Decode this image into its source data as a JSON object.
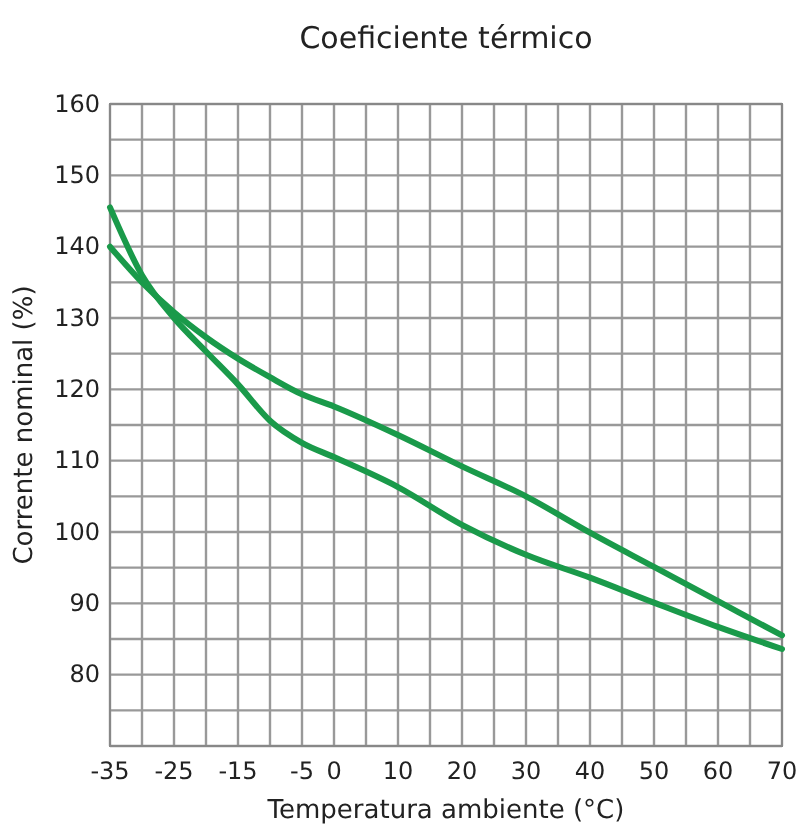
{
  "chart_data": {
    "type": "line",
    "title": "Coeficiente térmico",
    "xlabel": "Temperatura ambiente (°C)",
    "ylabel": "Corrente nominal (%)",
    "x": [
      -35,
      -30,
      -25,
      -20,
      -15,
      -10,
      -5,
      0,
      10,
      20,
      30,
      40,
      50,
      60,
      70
    ],
    "series": [
      {
        "color": "#1a9a4a",
        "values": [
          140,
          135,
          130.8,
          127.3,
          124.3,
          121.7,
          119.3,
          117.6,
          113.6,
          109.2,
          105,
          99.9,
          95.1,
          90.3,
          85.5
        ]
      },
      {
        "color": "#1a9a4a",
        "values": [
          145.5,
          136,
          130,
          125.3,
          120.7,
          115.6,
          112.5,
          110.5,
          106.3,
          101,
          96.8,
          93.6,
          90.1,
          86.7,
          83.6
        ]
      }
    ],
    "xlim": [
      -35,
      70
    ],
    "ylim": [
      70,
      160
    ],
    "xticks": [
      -35,
      {
        "value": -30,
        "label": null
      },
      -25,
      {
        "value": -20,
        "label": null
      },
      -15,
      {
        "value": -10,
        "label": null
      },
      -5,
      0,
      {
        "value": 5,
        "label": null
      },
      10,
      {
        "value": 15,
        "label": null
      },
      20,
      {
        "value": 25,
        "label": null
      },
      30,
      {
        "value": 35,
        "label": null
      },
      40,
      {
        "value": 45,
        "label": null
      },
      50,
      {
        "value": 55,
        "label": null
      },
      60,
      {
        "value": 65,
        "label": null
      },
      70
    ],
    "yticks": [
      {
        "value": 70,
        "label": null
      },
      {
        "value": 75,
        "label": null
      },
      80,
      {
        "value": 85,
        "label": null
      },
      90,
      {
        "value": 95,
        "label": null
      },
      100,
      {
        "value": 105,
        "label": null
      },
      110,
      {
        "value": 115,
        "label": null
      },
      120,
      {
        "value": 125,
        "label": null
      },
      130,
      {
        "value": 135,
        "label": null
      },
      140,
      {
        "value": 145,
        "label": null
      },
      150,
      {
        "value": 155,
        "label": null
      },
      160
    ],
    "grid": true,
    "marker": "none",
    "line_style": "solid"
  }
}
